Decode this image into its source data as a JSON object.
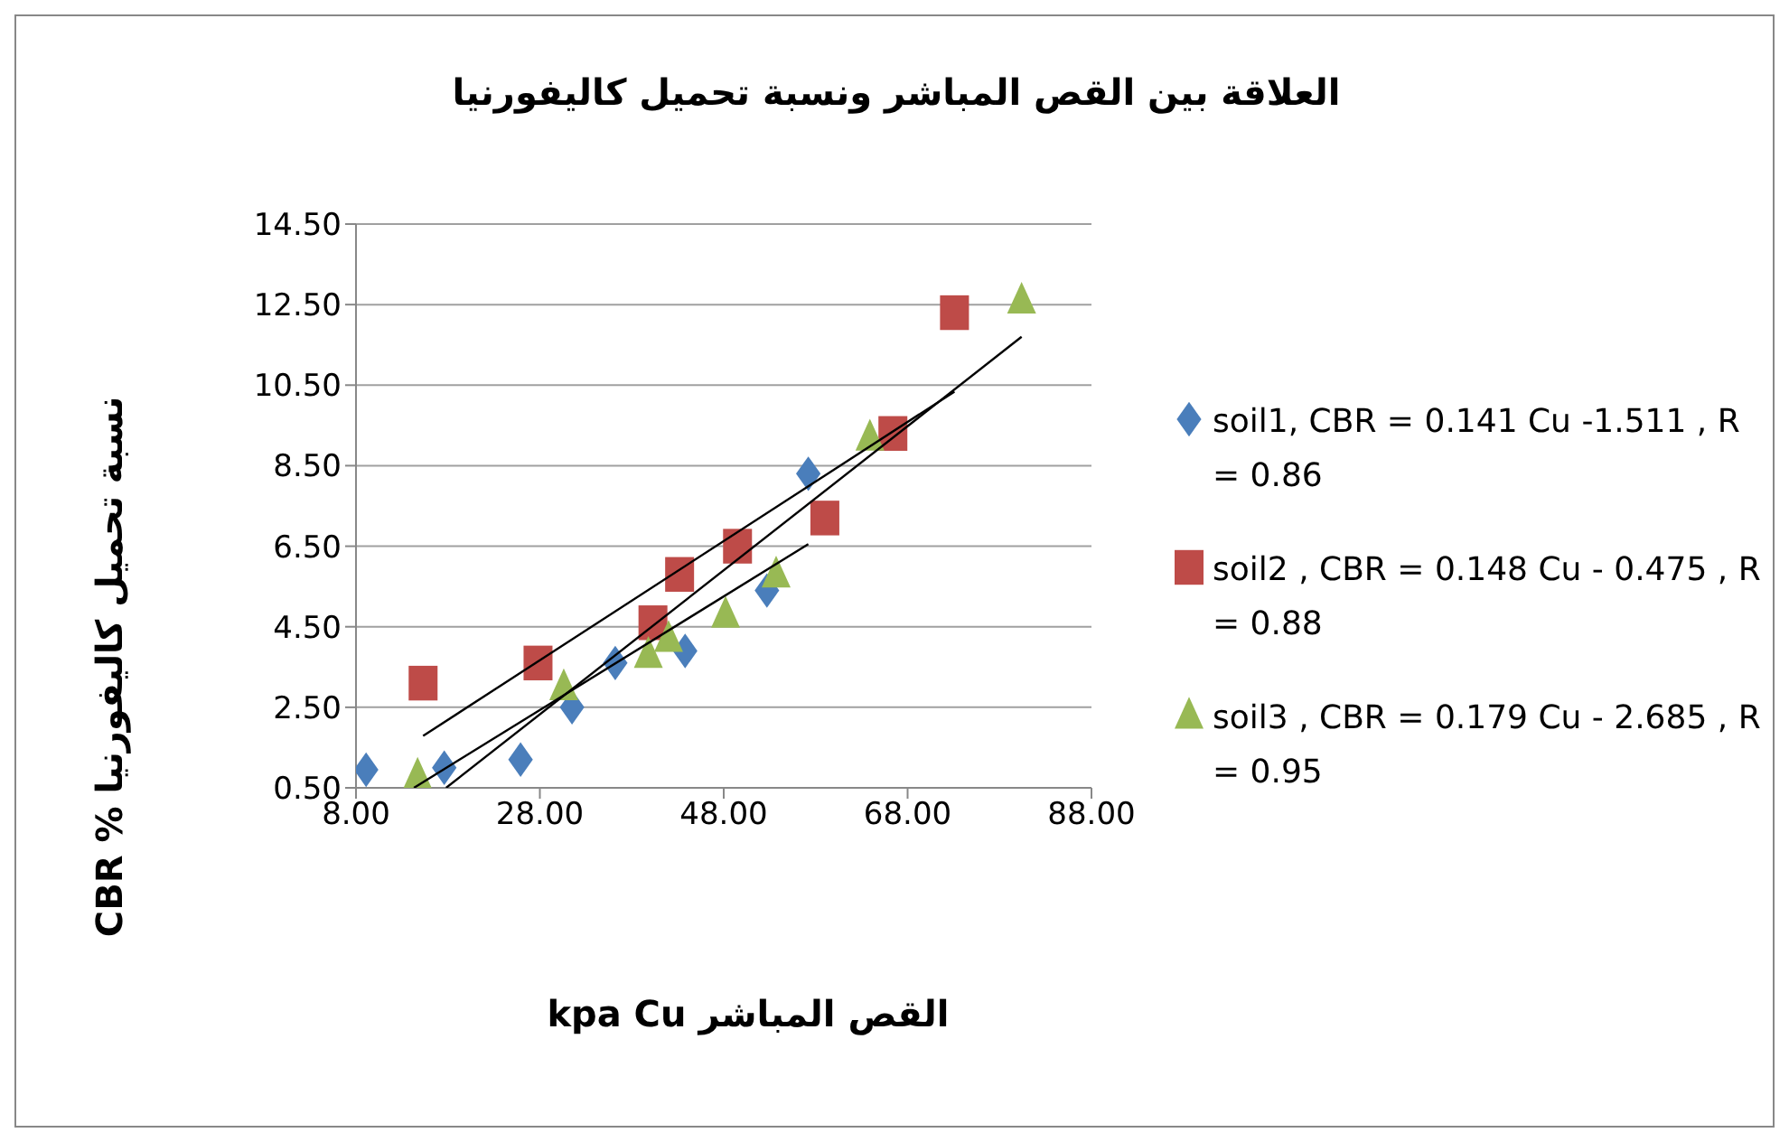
{
  "chart_data": {
    "type": "scatter",
    "title": "العلاقة بين القص المباشر ونسبة تحميل كاليفورنيا",
    "xlabel": "القص المباشر kpa Cu",
    "ylabel": "نسبة تحميل كاليفورنيا % CBR",
    "xlim": [
      8,
      88
    ],
    "xticks": [
      {
        "value": 8,
        "label": "8.00"
      },
      {
        "value": 28,
        "label": "28.00"
      },
      {
        "value": 48,
        "label": "48.00"
      },
      {
        "value": 68,
        "label": "68.00"
      },
      {
        "value": 88,
        "label": "88.00"
      }
    ],
    "ylim": [
      0.5,
      14.5
    ],
    "yticks": [
      {
        "value": 0.5,
        "label": "0.50"
      },
      {
        "value": 2.5,
        "label": "2.50"
      },
      {
        "value": 4.5,
        "label": "4.50"
      },
      {
        "value": 6.5,
        "label": "6.50"
      },
      {
        "value": 8.5,
        "label": "8.50"
      },
      {
        "value": 10.5,
        "label": "10.50"
      },
      {
        "value": 12.5,
        "label": "12.50"
      },
      {
        "value": 14.5,
        "label": "14.50"
      }
    ],
    "grid": "y",
    "legend": "right",
    "series": [
      {
        "type": "scatter",
        "name": "soil1, CBR = 0.141 Cu -1.511 ,  R = 0.86",
        "color": "#4a7ebb",
        "marker": "diamond",
        "x": [
          9.1,
          17.6,
          25.9,
          31.5,
          36.2,
          43.8,
          52.7,
          57.2
        ],
        "values": [
          0.95,
          1.0,
          1.2,
          2.5,
          3.6,
          3.9,
          5.4,
          8.3
        ]
      },
      {
        "type": "scatter",
        "name": "soil2 , CBR = 0.148 Cu - 0.475 ,  R = 0.88",
        "color": "#be4b48",
        "marker": "square",
        "x": [
          15.3,
          27.8,
          40.3,
          43.2,
          49.5,
          59.0,
          66.4,
          73.1
        ],
        "values": [
          3.1,
          3.6,
          4.6,
          5.8,
          6.5,
          7.2,
          9.3,
          12.3
        ]
      },
      {
        "type": "scatter",
        "name": "soil3 , CBR = 0.179 Cu - 2.685 ,  R = 0.95",
        "color": "#98b954",
        "marker": "triangle",
        "x": [
          14.7,
          30.6,
          39.8,
          42.0,
          48.2,
          53.7,
          63.9,
          80.4
        ],
        "values": [
          0.8,
          3.0,
          3.8,
          4.2,
          4.8,
          5.8,
          9.2,
          12.6
        ]
      },
      {
        "type": "line",
        "color": "#000000",
        "marker": "none",
        "x": [
          14.3,
          57.2
        ],
        "values": [
          0.5,
          6.55
        ]
      },
      {
        "type": "line",
        "color": "#000000",
        "marker": "none",
        "x": [
          15.3,
          73.1
        ],
        "values": [
          1.79,
          10.34
        ]
      },
      {
        "type": "line",
        "color": "#000000",
        "marker": "none",
        "x": [
          17.8,
          80.4
        ],
        "values": [
          0.5,
          11.7
        ]
      }
    ]
  }
}
